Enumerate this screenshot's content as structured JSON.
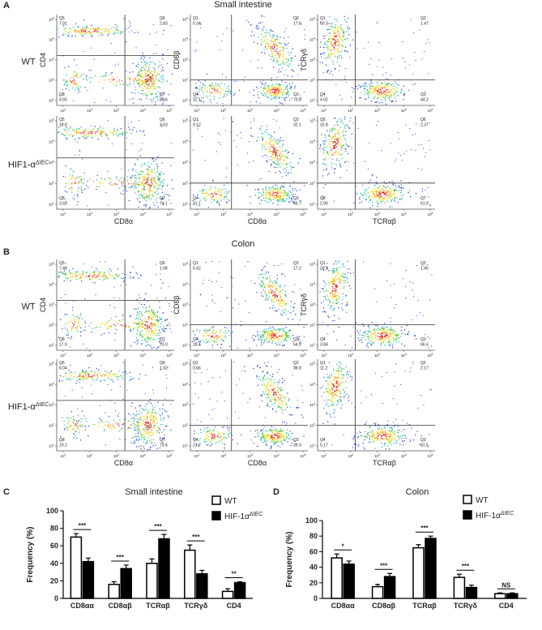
{
  "flow_panels": [
    {
      "label": "A",
      "title": "Small intestine",
      "tick_base": "10",
      "tick_exps": [
        "1",
        "2",
        "3",
        "4",
        "5"
      ],
      "columns": [
        {
          "x_label": "CD8α",
          "y_label": "CD4"
        },
        {
          "x_label": "CD8α",
          "y_label": "CD8β"
        },
        {
          "x_label": "TCRαβ",
          "y_label": "TCRγδ"
        }
      ],
      "rows": [
        {
          "label": "WT",
          "plots": [
            {
              "tl": {
                "q": "Q5",
                "v": 7.01
              },
              "tr": {
                "q": "Q6",
                "v": 2.83
              },
              "bl": {
                "q": "Q8",
                "v": 4.55
              },
              "br": {
                "q": "Q7",
                "v": 85.6
              }
            },
            {
              "tl": {
                "q": "Q1",
                "v": 0.34
              },
              "tr": {
                "q": "Q2",
                "v": 17.6
              },
              "bl": {
                "q": "Q4",
                "v": 11.3
              },
              "br": {
                "q": "Q3",
                "v": 70.8
              }
            },
            {
              "tl": {
                "q": "Q1",
                "v": 50.3
              },
              "tr": {
                "q": "Q2",
                "v": 1.47
              },
              "bl": {
                "q": "Q4",
                "v": 4.02
              },
              "br": {
                "q": "Q3",
                "v": 44.2
              }
            }
          ]
        },
        {
          "label": "HIF1-α",
          "label_sup": "ΔIEC",
          "plots": [
            {
              "tl": {
                "q": "Q5",
                "v": 18.8
              },
              "tr": {
                "q": "Q6",
                "v": 3.63
              },
              "bl": {
                "q": "Q8",
                "v": 3.52
              },
              "br": {
                "q": "Q7",
                "v": 74.1
              }
            },
            {
              "tl": {
                "q": "Q1",
                "v": 0.12
              },
              "tr": {
                "q": "Q2",
                "v": 32.1
              },
              "bl": {
                "q": "Q4",
                "v": 21.1
              },
              "br": {
                "q": "Q3",
                "v": 46.7
              }
            },
            {
              "tl": {
                "q": "Q5",
                "v": 32.8
              },
              "tr": {
                "q": "Q6",
                "v": 2.37
              },
              "bl": {
                "q": "Q8",
                "v": "2.90"
              },
              "br": {
                "q": "Q7",
                "v": 61.9
              }
            }
          ]
        }
      ]
    },
    {
      "label": "B",
      "title": "Colon",
      "tick_base": "10",
      "tick_exps": [
        "1",
        "2",
        "3",
        "4",
        "5"
      ],
      "columns": [
        {
          "x_label": "CD8α",
          "y_label": "CD4"
        },
        {
          "x_label": "CD8α",
          "y_label": "CD8β"
        },
        {
          "x_label": "TCRαβ",
          "y_label": "TCRγδ"
        }
      ],
      "rows": [
        {
          "label": "WT",
          "plots": [
            {
              "tl": {
                "q": "Q5",
                "v": 7.48
              },
              "tr": {
                "q": "Q6",
                "v": 1.56
              },
              "bl": {
                "q": "Q8",
                "v": 17.9
              },
              "br": {
                "q": "Q7",
                "v": "73.0"
              }
            },
            {
              "tl": {
                "q": "Q1",
                "v": 0.42
              },
              "tr": {
                "q": "Q2",
                "v": 17.2
              },
              "bl": {
                "q": "Q4",
                "v": 28.4
              },
              "br": {
                "q": "Q3",
                "v": "54.0"
              }
            },
            {
              "tl": {
                "q": "Q1",
                "v": 29.1
              },
              "tr": {
                "q": "Q2",
                "v": 1.45
              },
              "bl": {
                "q": "Q4",
                "v": 3.84
              },
              "br": {
                "q": "Q3",
                "v": 66.6
              }
            }
          ]
        },
        {
          "label": "HIF1-α",
          "label_sup": "ΔIEC",
          "plots": [
            {
              "tl": {
                "q": "Q5",
                "v": 6.04
              },
              "tr": {
                "q": "Q6",
                "v": 1.02
              },
              "bl": {
                "q": "Q8",
                "v": 19.1
              },
              "br": {
                "q": "Q7",
                "v": 73.6
              }
            },
            {
              "tl": {
                "q": "Q1",
                "v": 0.66
              },
              "tr": {
                "q": "Q2",
                "v": 38.8
              },
              "bl": {
                "q": "Q4",
                "v": 21.2
              },
              "br": {
                "q": "Q3",
                "v": 39.3
              }
            },
            {
              "tl": {
                "q": "Q1",
                "v": 11.2
              },
              "tr": {
                "q": "Q2",
                "v": 2.17
              },
              "bl": {
                "q": "Q4",
                "v": 5.17
              },
              "br": {
                "q": "Q3",
                "v": 81.5
              }
            }
          ]
        }
      ]
    }
  ],
  "chart_data": [
    {
      "type": "bar",
      "label": "C",
      "title": "Small intestine",
      "y_label": "Frequency (%)",
      "categories": [
        "CD8αα",
        "CD8αβ",
        "TCRαβ",
        "TCRγδ",
        "CD4"
      ],
      "series": [
        {
          "name": "WT",
          "color": "#ffffff",
          "values": [
            70,
            16,
            40,
            55,
            8
          ],
          "errors": [
            4,
            3,
            5,
            6,
            3
          ]
        },
        {
          "name": "HIF-1α",
          "name_sup": "ΔIEC",
          "color": "#000000",
          "values": [
            42,
            34,
            68,
            28,
            18
          ],
          "errors": [
            4,
            4,
            5,
            4,
            1
          ]
        }
      ],
      "ylim": [
        0,
        100
      ],
      "yticks": [
        0,
        20,
        40,
        60,
        80,
        100
      ],
      "significance": [
        "***",
        "***",
        "***",
        "***",
        "**"
      ]
    },
    {
      "type": "bar",
      "label": "D",
      "title": "Colon",
      "y_label": "Frequency (%)",
      "categories": [
        "CD8αα",
        "CD8αβ",
        "TCRαβ",
        "TCRγδ",
        "CD4"
      ],
      "series": [
        {
          "name": "WT",
          "color": "#ffffff",
          "values": [
            52,
            15,
            65,
            27,
            6
          ],
          "errors": [
            5,
            3,
            4,
            4,
            1
          ]
        },
        {
          "name": "HIF-1α",
          "name_sup": "ΔIEC",
          "color": "#000000",
          "values": [
            44,
            28,
            77,
            14,
            6
          ],
          "errors": [
            4,
            4,
            3,
            3,
            1
          ]
        }
      ],
      "ylim": [
        0,
        100
      ],
      "yticks": [
        0,
        20,
        40,
        60,
        80,
        100
      ],
      "significance": [
        "*",
        "***",
        "***",
        "***",
        "NS"
      ]
    }
  ]
}
